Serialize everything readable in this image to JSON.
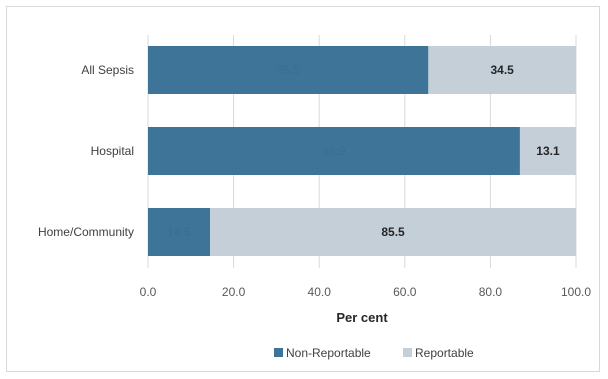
{
  "chart_data": {
    "type": "bar",
    "orientation": "horizontal",
    "stacked": true,
    "categories": [
      "All Sepsis",
      "Hospital",
      "Home/Community"
    ],
    "series": [
      {
        "name": "Non-Reportable",
        "values": [
          65.5,
          86.9,
          14.5
        ],
        "labels": [
          "65.5",
          "86.9",
          "14.5"
        ],
        "color": "#3f7499"
      },
      {
        "name": "Reportable",
        "values": [
          34.5,
          13.1,
          85.5
        ],
        "labels": [
          "34.5",
          "13.1",
          "85.5"
        ],
        "color": "#c4cfd8"
      }
    ],
    "xlabel": "Per cent",
    "xlim": [
      0,
      100
    ],
    "xticks": [
      "0.0",
      "20.0",
      "40.0",
      "60.0",
      "80.0",
      "100.0"
    ],
    "grid": true,
    "legend_position": "bottom"
  }
}
